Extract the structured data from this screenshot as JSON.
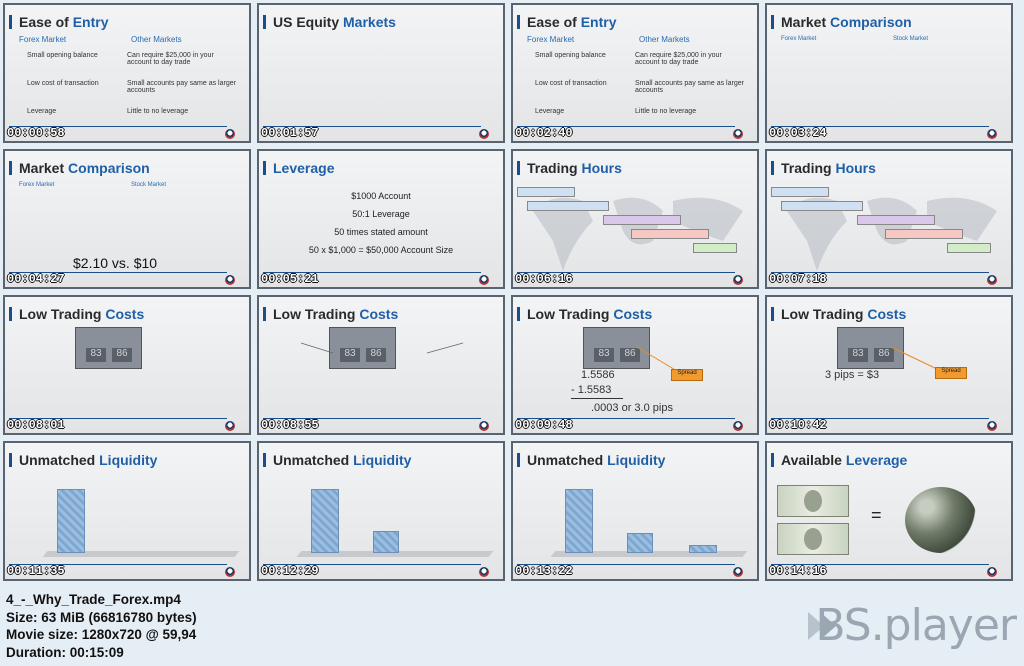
{
  "tiles": [
    {
      "title_a": "Ease of ",
      "title_b": "Entry",
      "time": "00:00:58",
      "col1_head": "Forex Market",
      "col2_head": "Other Markets",
      "col1": [
        "Small opening balance",
        "Low cost of transaction",
        "Leverage"
      ],
      "col2": [
        "Can require $25,000 in your account to day trade",
        "Small accounts pay same as larger accounts",
        "Little to no leverage"
      ]
    },
    {
      "title_a": "US Equity ",
      "title_b": "Markets",
      "time": "00:01:57"
    },
    {
      "title_a": "Ease of ",
      "title_b": "Entry",
      "time": "00:02:40",
      "col1_head": "Forex Market",
      "col2_head": "Other Markets",
      "col1": [
        "Small opening balance",
        "Low cost of transaction",
        "Leverage"
      ],
      "col2": [
        "Can require $25,000 in your account to day trade",
        "Small accounts pay same as larger accounts",
        "Little to no leverage"
      ]
    },
    {
      "title_a": "Market ",
      "title_b": "Comparison",
      "time": "00:03:24",
      "col1_head": "Forex Market",
      "col2_head": "Stock Market"
    },
    {
      "title_a": "Market ",
      "title_b": "Comparison",
      "time": "00:04:27",
      "col1_head": "Forex Market",
      "col2_head": "Stock Market",
      "big": "$2.10 vs. $10"
    },
    {
      "title_a": "",
      "title_b": "Leverage",
      "time": "00:05:21",
      "lines": [
        "$1000 Account",
        "50:1 Leverage",
        "50 times stated amount",
        "50 x $1,000 = $50,000 Account Size"
      ]
    },
    {
      "title_a": "Trading ",
      "title_b": "Hours",
      "time": "00:06:16"
    },
    {
      "title_a": "Trading ",
      "title_b": "Hours",
      "time": "00:07:18"
    },
    {
      "title_a": "Low Trading ",
      "title_b": "Costs",
      "time": "00:08:01",
      "q1": "83",
      "q2": "86"
    },
    {
      "title_a": "Low Trading ",
      "title_b": "Costs",
      "time": "00:08:55",
      "q1": "83",
      "q2": "86"
    },
    {
      "title_a": "Low Trading ",
      "title_b": "Costs",
      "time": "00:09:48",
      "q1": "83",
      "q2": "86",
      "spread": "Spread",
      "calc1": "1.5586",
      "calc2": "- 1.5583",
      "calc3": ".0003 or 3.0 pips"
    },
    {
      "title_a": "Low Trading ",
      "title_b": "Costs",
      "time": "00:10:42",
      "q1": "83",
      "q2": "86",
      "spread": "Spread",
      "calc": "3 pips = $3"
    },
    {
      "title_a": "Unmatched ",
      "title_b": "Liquidity",
      "time": "00:11:35"
    },
    {
      "title_a": "Unmatched ",
      "title_b": "Liquidity",
      "time": "00:12:29"
    },
    {
      "title_a": "Unmatched ",
      "title_b": "Liquidity",
      "time": "00:13:22"
    },
    {
      "title_a": "Available ",
      "title_b": "Leverage",
      "time": "00:14:16",
      "eq": "="
    }
  ],
  "info": {
    "filename": "4_-_Why_Trade_Forex.mp4",
    "size": "Size: 63 MiB (66816780 bytes)",
    "movie": "Movie size: 1280x720 @ 59,94",
    "duration": "Duration: 00:15:09"
  },
  "brand": "BS.player",
  "colors": {
    "accent": "#1f5fa8",
    "timestamp": "#ffffff",
    "border": "#5a6470"
  }
}
